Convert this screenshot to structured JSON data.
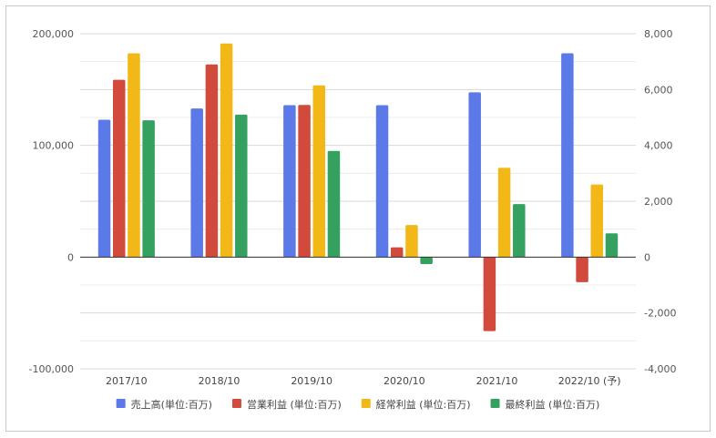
{
  "chart_data": {
    "type": "bar",
    "categories": [
      "2017/10",
      "2018/10",
      "2019/10",
      "2020/10",
      "2021/10",
      "2022/10 (予)"
    ],
    "series": [
      {
        "name": "売上高(単位:百万)",
        "axis": "left",
        "color": "#5b7ae8",
        "values": [
          123000,
          133000,
          136000,
          136000,
          147500,
          182500
        ]
      },
      {
        "name": "営業利益 (単位:百万)",
        "axis": "right",
        "color": "#d14a3c",
        "values": [
          6350,
          6900,
          5450,
          350,
          -2650,
          -900
        ]
      },
      {
        "name": "経常利益 (単位:百万)",
        "axis": "right",
        "color": "#f2b817",
        "values": [
          7300,
          7650,
          6150,
          1150,
          3200,
          2600
        ]
      },
      {
        "name": "最終利益 (単位:百万)",
        "axis": "right",
        "color": "#34a160",
        "values": [
          4900,
          5100,
          3800,
          -250,
          1900,
          850
        ]
      }
    ],
    "left_axis": {
      "min": -100000,
      "max": 200000,
      "ticks": [
        -100000,
        0,
        100000,
        200000
      ],
      "tick_labels": [
        "-100,000",
        "0",
        "100,000",
        "200,000"
      ]
    },
    "right_axis": {
      "min": -4000,
      "max": 8000,
      "ticks": [
        -4000,
        -2000,
        0,
        2000,
        4000,
        6000,
        8000
      ],
      "tick_labels": [
        "-4,000",
        "-2,000",
        "0",
        "2,000",
        "4,000",
        "6,000",
        "8,000"
      ]
    },
    "grid": true,
    "legend_position": "bottom"
  }
}
